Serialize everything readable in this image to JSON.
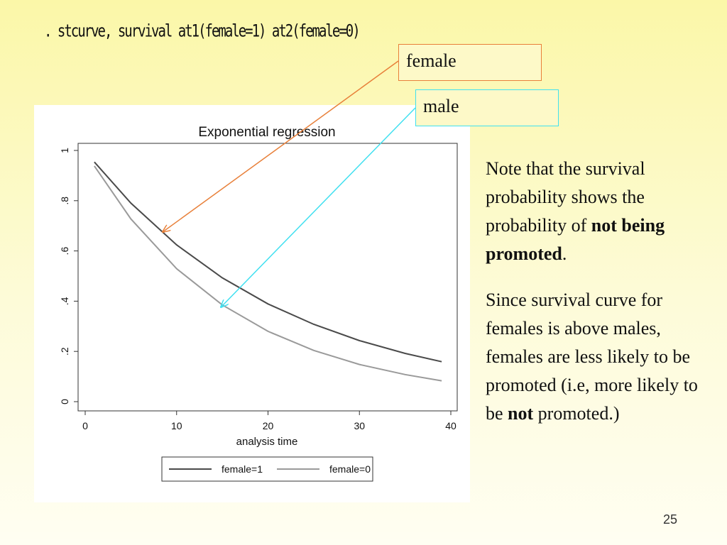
{
  "command": ". stcurve, survival at1(female=1) at2(female=0)",
  "callouts": {
    "female": "female",
    "male": "male"
  },
  "colors": {
    "female_arrow": "#e8803a",
    "male_arrow": "#40e0f0",
    "female_line": "#4a4a4a",
    "male_line": "#9a9a9a"
  },
  "chart_data": {
    "type": "line",
    "title": "Exponential regression",
    "xlabel": "analysis time",
    "ylabel": "",
    "xlim": [
      0,
      40
    ],
    "ylim": [
      0,
      1
    ],
    "x_ticks": [
      0,
      10,
      20,
      30,
      40
    ],
    "x_tick_labels": [
      "0",
      "10",
      "20",
      "30",
      "40"
    ],
    "y_ticks": [
      0,
      0.2,
      0.4,
      0.6,
      0.8,
      1
    ],
    "y_tick_labels": [
      "0",
      ".2",
      ".4",
      ".6",
      ".8",
      "1"
    ],
    "grid": false,
    "legend_position": "bottom",
    "x": [
      1,
      5,
      10,
      15,
      20,
      25,
      30,
      35,
      39
    ],
    "series": [
      {
        "name": "female=1",
        "values": [
          0.954,
          0.79,
          0.624,
          0.493,
          0.389,
          0.308,
          0.243,
          0.192,
          0.159
        ]
      },
      {
        "name": "female=0",
        "values": [
          0.938,
          0.727,
          0.529,
          0.385,
          0.28,
          0.204,
          0.148,
          0.108,
          0.083
        ]
      }
    ]
  },
  "note": {
    "p1_text": "Note that the survival probability shows the probability of ",
    "p1_bold": "not being promoted",
    "p1_end": ".",
    "p2_text": "Since survival curve for females is above males, females are less likely to be promoted (i.e, more likely to be ",
    "p2_bold": "not",
    "p2_end": " promoted.)"
  },
  "page_number": "25"
}
